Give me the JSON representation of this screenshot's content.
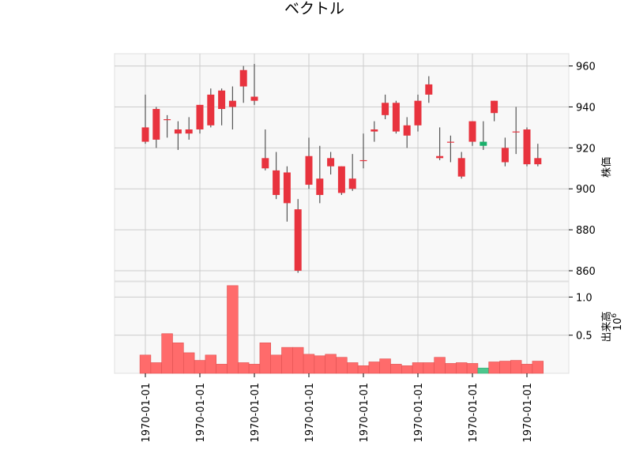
{
  "chart_data": {
    "type": "candlestick",
    "title": "ベクトル",
    "price_axis": {
      "label": "株価",
      "ylim": [
        855,
        966
      ],
      "ticks": [
        860,
        880,
        900,
        920,
        940,
        960
      ]
    },
    "volume_axis": {
      "label": "出来高",
      "exponent_label": "10",
      "exponent": "6",
      "ylim": [
        0,
        1.2
      ],
      "ticks": [
        0.5,
        1.0
      ]
    },
    "x_tick_labels": [
      "1970-01-01",
      "1970-01-01",
      "1970-01-01",
      "1970-01-01",
      "1970-01-01",
      "1970-01-01",
      "1970-01-01",
      "1970-01-01"
    ],
    "grid": true,
    "colors": {
      "up": "#e8333e",
      "down": "#1ab06b",
      "up_vol": "#ff6b6b",
      "down_vol": "#4cc68d",
      "wick": "#555555",
      "panel_bg": "#f8f8f8",
      "grid": "#cccccc"
    },
    "candles": [
      {
        "o": 923,
        "h": 946,
        "l": 922,
        "c": 930
      },
      {
        "o": 924,
        "h": 940,
        "l": 920,
        "c": 939
      },
      {
        "o": 934,
        "h": 936,
        "l": 925,
        "c": 934
      },
      {
        "o": 927,
        "h": 933,
        "l": 919,
        "c": 929
      },
      {
        "o": 927,
        "h": 935,
        "l": 924,
        "c": 929
      },
      {
        "o": 929,
        "h": 941,
        "l": 927,
        "c": 941
      },
      {
        "o": 931,
        "h": 949,
        "l": 930,
        "c": 946
      },
      {
        "o": 939,
        "h": 949,
        "l": 931,
        "c": 948
      },
      {
        "o": 940,
        "h": 950,
        "l": 929,
        "c": 943
      },
      {
        "o": 950,
        "h": 960,
        "l": 942,
        "c": 958
      },
      {
        "o": 943,
        "h": 961,
        "l": 941,
        "c": 945
      },
      {
        "o": 910,
        "h": 929,
        "l": 909,
        "c": 915
      },
      {
        "o": 897,
        "h": 918,
        "l": 895,
        "c": 909
      },
      {
        "o": 893,
        "h": 911,
        "l": 884,
        "c": 908
      },
      {
        "o": 860,
        "h": 895,
        "l": 859,
        "c": 890
      },
      {
        "o": 902,
        "h": 925,
        "l": 900,
        "c": 916
      },
      {
        "o": 897,
        "h": 921,
        "l": 893,
        "c": 905
      },
      {
        "o": 911,
        "h": 918,
        "l": 907,
        "c": 915
      },
      {
        "o": 898,
        "h": 911,
        "l": 897,
        "c": 911
      },
      {
        "o": 900,
        "h": 917,
        "l": 899,
        "c": 905
      },
      {
        "o": 914,
        "h": 927,
        "l": 910,
        "c": 914
      },
      {
        "o": 928,
        "h": 933,
        "l": 923,
        "c": 929
      },
      {
        "o": 936,
        "h": 946,
        "l": 934,
        "c": 942
      },
      {
        "o": 928,
        "h": 943,
        "l": 927,
        "c": 942
      },
      {
        "o": 926,
        "h": 935,
        "l": 920,
        "c": 931
      },
      {
        "o": 931,
        "h": 946,
        "l": 928,
        "c": 943
      },
      {
        "o": 946,
        "h": 955,
        "l": 942,
        "c": 951
      },
      {
        "o": 915,
        "h": 930,
        "l": 914,
        "c": 916
      },
      {
        "o": 923,
        "h": 926,
        "l": 913,
        "c": 923
      },
      {
        "o": 906,
        "h": 918,
        "l": 905,
        "c": 915
      },
      {
        "o": 923,
        "h": 933,
        "l": 921,
        "c": 933
      },
      {
        "o": 923,
        "h": 933,
        "l": 919,
        "c": 921
      },
      {
        "o": 937,
        "h": 943,
        "l": 933,
        "c": 943
      },
      {
        "o": 913,
        "h": 925,
        "l": 911,
        "c": 920
      },
      {
        "o": 928,
        "h": 940,
        "l": 917,
        "c": 928
      },
      {
        "o": 912,
        "h": 930,
        "l": 911,
        "c": 929
      },
      {
        "o": 912,
        "h": 922,
        "l": 911,
        "c": 915
      }
    ],
    "volume": [
      0.24,
      0.14,
      0.52,
      0.4,
      0.27,
      0.17,
      0.24,
      0.12,
      1.15,
      0.14,
      0.12,
      0.4,
      0.24,
      0.34,
      0.34,
      0.25,
      0.23,
      0.25,
      0.21,
      0.14,
      0.1,
      0.15,
      0.19,
      0.12,
      0.1,
      0.14,
      0.14,
      0.21,
      0.13,
      0.14,
      0.13,
      0.07,
      0.15,
      0.16,
      0.17,
      0.12,
      0.16
    ]
  }
}
